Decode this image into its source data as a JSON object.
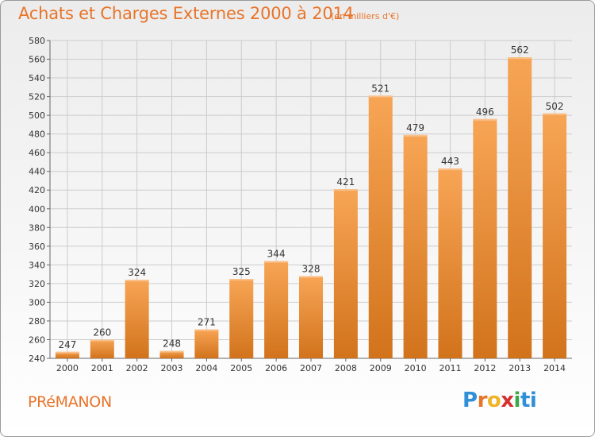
{
  "header": {
    "title": "Achats et Charges Externes 2000 à 2014",
    "subtitle": "(en milliers d'€)"
  },
  "footer": {
    "commune": "PRéMANON",
    "brand": "Proxiti",
    "brand_colors": [
      "#2f8fd8",
      "#e8742a",
      "#f0b428",
      "#d62f2f",
      "#3aa84a",
      "#2f8fd8"
    ]
  },
  "colors": {
    "bar_light": "#f7a555",
    "bar_dark": "#d2731c",
    "accent": "#e8742a",
    "grid": "#cccccc"
  },
  "chart_data": {
    "type": "bar",
    "title": "Achats et Charges Externes 2000 à 2014",
    "subtitle": "(en milliers d'€)",
    "categories": [
      "2000",
      "2001",
      "2002",
      "2003",
      "2004",
      "2005",
      "2006",
      "2007",
      "2008",
      "2009",
      "2010",
      "2011",
      "2012",
      "2013",
      "2014"
    ],
    "values": [
      247,
      260,
      324,
      248,
      271,
      325,
      344,
      328,
      421,
      521,
      479,
      443,
      496,
      562,
      502
    ],
    "ylim": [
      240,
      580
    ],
    "ytick_step": 20,
    "grid": true,
    "data_labels": true
  }
}
